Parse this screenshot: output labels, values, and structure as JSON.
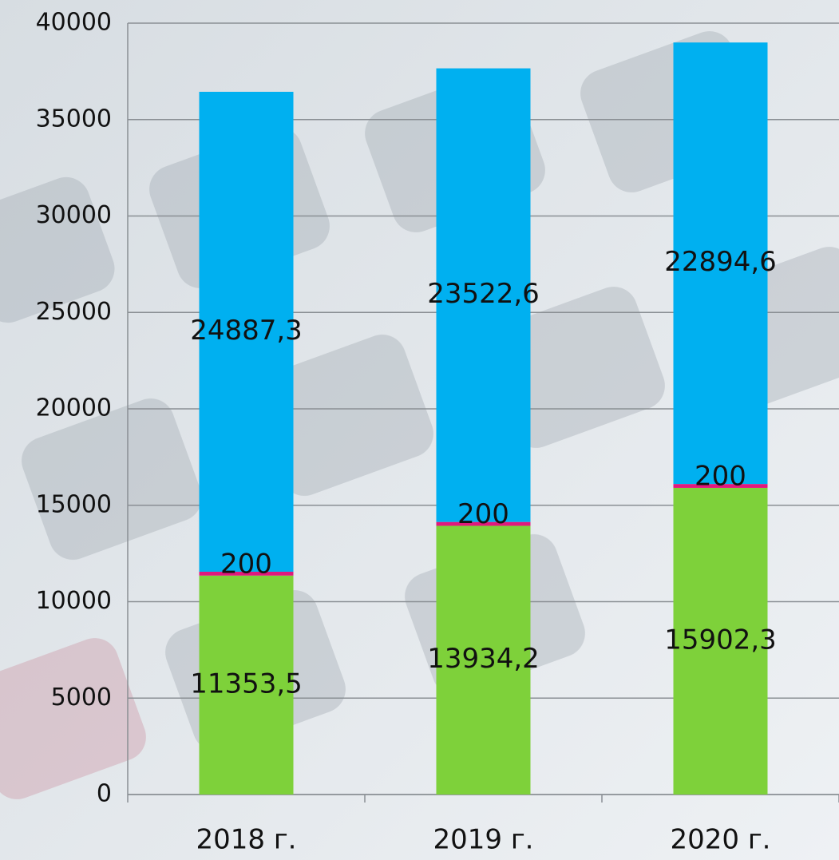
{
  "chart_data": {
    "type": "stacked_bar",
    "categories": [
      "2018 г.",
      "2019 г.",
      "2020 г."
    ],
    "series": [
      {
        "color": "#7ed13a",
        "values": [
          11353.5,
          13934.2,
          15902.3
        ],
        "value_labels": [
          "11353,5",
          "13934,2",
          "15902,3"
        ]
      },
      {
        "color": "#e0197d",
        "values": [
          200,
          200,
          200
        ]
      },
      {
        "color": "#00b0f0",
        "values": [
          24887.3,
          23522.6,
          22894.6
        ],
        "value_labels": [
          "24887,3",
          "23522,6",
          "22894,6"
        ]
      }
    ],
    "ylim": [
      0,
      40000
    ],
    "yticks": [
      0,
      5000,
      10000,
      15000,
      20000,
      25000,
      30000,
      35000,
      40000
    ],
    "grid": true
  }
}
